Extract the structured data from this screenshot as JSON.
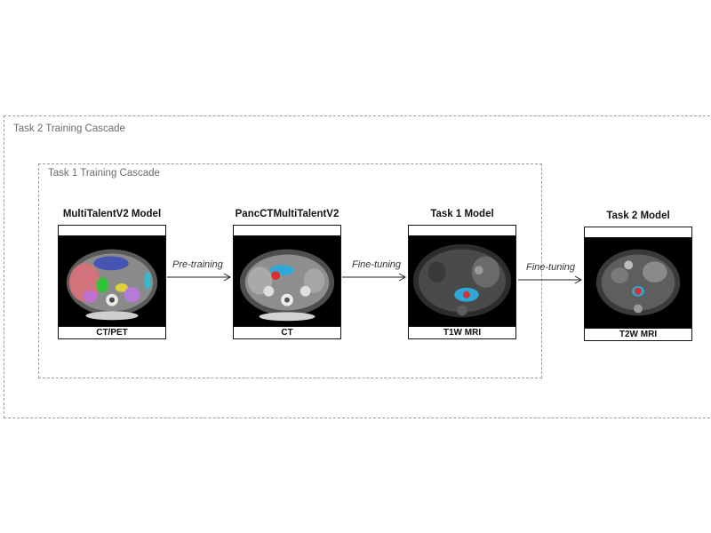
{
  "cascades": {
    "task2_label": "Task 2 Training Cascade",
    "task1_label": "Task 1 Training Cascade"
  },
  "stages": [
    {
      "title": "MultiTalentV2 Model",
      "modality": "CT/PET"
    },
    {
      "title": "PancCTMultiTalentV2",
      "modality": "CT"
    },
    {
      "title": "Task 1 Model",
      "modality": "T1W MRI"
    },
    {
      "title": "Task 2 Model",
      "modality": "T2W MRI"
    }
  ],
  "transitions": [
    {
      "label": "Pre-training"
    },
    {
      "label": "Fine-tuning"
    },
    {
      "label": "Fine-tuning"
    }
  ]
}
